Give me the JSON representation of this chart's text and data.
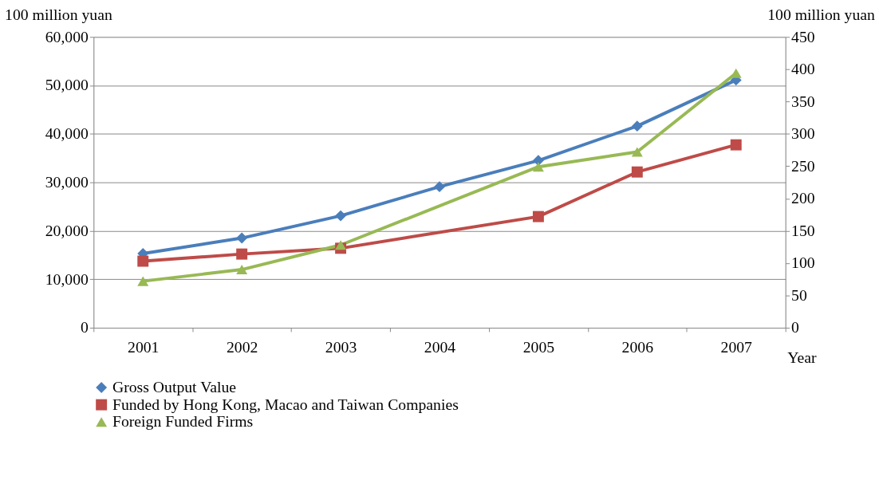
{
  "chart_data": {
    "type": "line",
    "categories": [
      "2001",
      "2002",
      "2003",
      "2004",
      "2005",
      "2006",
      "2007"
    ],
    "xlabel": "Year",
    "ylabel": "100 million yuan",
    "y2label": "100 million yuan",
    "series": [
      {
        "name": "Gross Output Value",
        "color": "#4a7ebb",
        "marker": "diamond",
        "values": [
          15300,
          18500,
          23100,
          29100,
          34500,
          41600,
          51100
        ]
      },
      {
        "name": "Funded by Hong Kong, Macao and Taiwan Companies",
        "color": "#be4b48",
        "marker": "square",
        "axis": "y2",
        "values": [
          103,
          114,
          123,
          null,
          172,
          241,
          283
        ]
      },
      {
        "name": "Foreign Funded Firms",
        "color": "#98b954",
        "marker": "triangle",
        "axis": "y2",
        "values": [
          72,
          90,
          128,
          null,
          249,
          272,
          394
        ]
      }
    ],
    "ylim": [
      0,
      60000
    ],
    "yticks": [
      0,
      {
        "value": 10000,
        "label": "10,000"
      },
      {
        "value": 20000,
        "label": "20,000"
      },
      {
        "value": 30000,
        "label": "30,000"
      },
      {
        "value": 40000,
        "label": "40,000"
      },
      {
        "value": 50000,
        "label": "50,000"
      },
      {
        "value": 60000,
        "label": "60,000"
      }
    ],
    "y2lim": [
      0,
      450
    ],
    "y2ticks": [
      0,
      50,
      100,
      150,
      200,
      250,
      300,
      350,
      400,
      450
    ],
    "grid": "y",
    "legend": "bottom",
    "line_style": "solid"
  }
}
